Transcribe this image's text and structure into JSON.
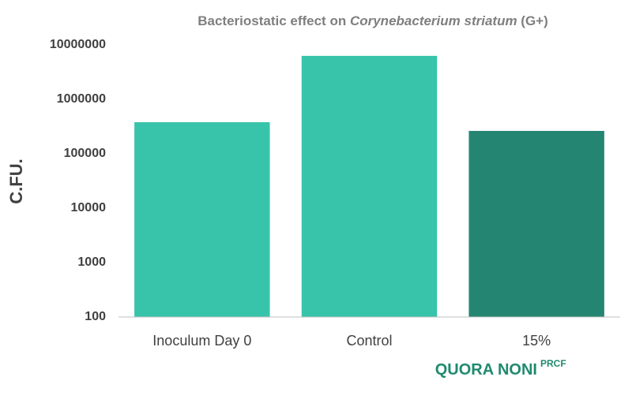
{
  "chart_data": {
    "type": "bar",
    "title": [
      "Bacteriostatic effect on ",
      "Corynebacterium striatum",
      " (G+)"
    ],
    "ylabel": "C.FU.",
    "categories": [
      "Inoculum Day 0",
      "Control",
      "15%"
    ],
    "values": [
      380000,
      6300000,
      263000
    ],
    "colors": [
      "#37c4aa",
      "#37c4aa",
      "#248672"
    ],
    "ylim": [
      100,
      10000000
    ],
    "yticks": [
      100,
      1000,
      10000,
      100000,
      1000000,
      10000000
    ],
    "log_scale": true,
    "grid": false,
    "brand": "QUORA NONI",
    "brand_sup": "PRCF"
  }
}
